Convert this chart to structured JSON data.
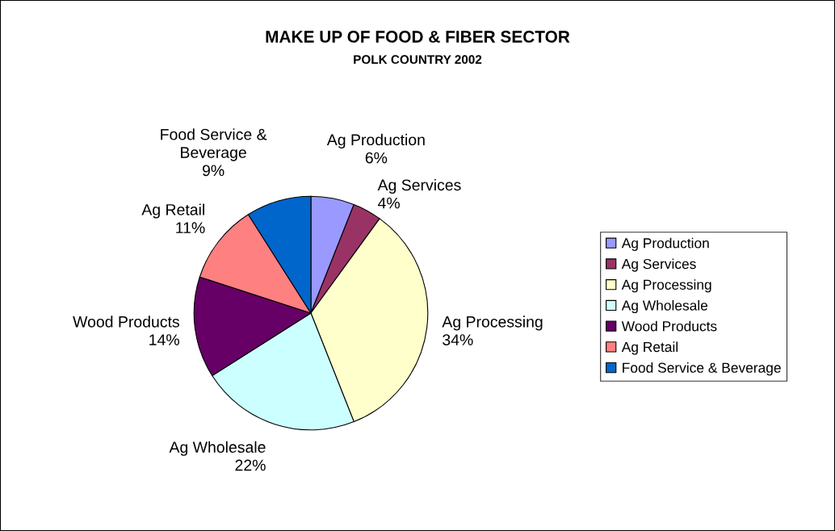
{
  "chart_data": {
    "type": "pie",
    "title": "MAKE UP OF FOOD & FIBER SECTOR",
    "subtitle": "POLK COUNTRY 2002",
    "categories": [
      "Ag Production",
      "Ag Services",
      "Ag Processing",
      "Ag Wholesale",
      "Wood Products",
      "Ag Retail",
      "Food Service & Beverage"
    ],
    "values": [
      6,
      4,
      34,
      22,
      14,
      11,
      9
    ],
    "colors": [
      "#9999ff",
      "#993366",
      "#ffffcc",
      "#ccffff",
      "#660066",
      "#ff8080",
      "#0066cc"
    ],
    "value_labels": [
      "Ag Production\n6%",
      "Ag Services\n4%",
      "Ag Processing\n34%",
      "Ag Wholesale\n22%",
      "Wood Products\n14%",
      "Ag Retail\n11%",
      "Food Service &\nBeverage\n9%"
    ],
    "legend": "right"
  }
}
